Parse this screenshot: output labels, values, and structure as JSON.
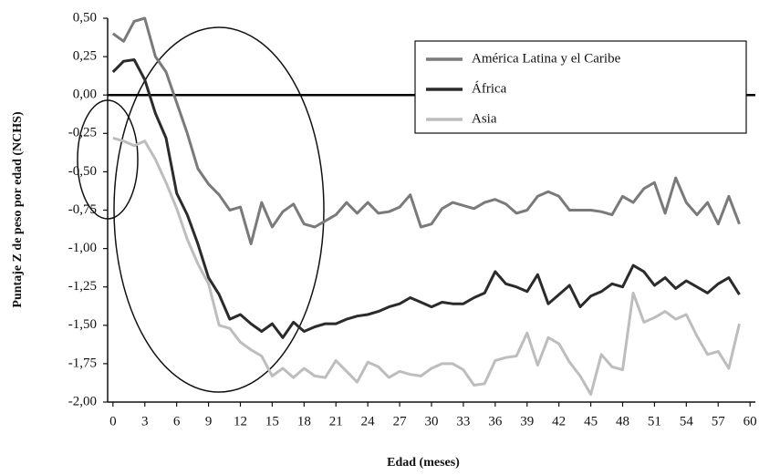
{
  "chart_data": {
    "type": "line",
    "x_label": "Edad (meses)",
    "y_label": "Puntaje Z de peso por edad (NCHS)",
    "x": [
      0,
      1,
      2,
      3,
      4,
      5,
      6,
      7,
      8,
      9,
      10,
      11,
      12,
      13,
      14,
      15,
      16,
      17,
      18,
      19,
      20,
      21,
      22,
      23,
      24,
      25,
      26,
      27,
      28,
      29,
      30,
      31,
      32,
      33,
      34,
      35,
      36,
      37,
      38,
      39,
      40,
      41,
      42,
      43,
      44,
      45,
      46,
      47,
      48,
      49,
      50,
      51,
      52,
      53,
      54,
      55,
      56,
      57,
      58,
      59
    ],
    "xlim": [
      -0.5,
      60.5
    ],
    "xticks": [
      0,
      3,
      6,
      9,
      12,
      15,
      18,
      21,
      24,
      27,
      30,
      33,
      36,
      39,
      42,
      45,
      48,
      51,
      54,
      57,
      60
    ],
    "ylim": [
      -2,
      0.5
    ],
    "yticks": [
      {
        "value": 0.5,
        "label": "0,50"
      },
      {
        "value": 0.25,
        "label": "0,25"
      },
      {
        "value": 0,
        "label": "0,00"
      },
      {
        "value": -0.25,
        "label": "-0,25"
      },
      {
        "value": -0.5,
        "label": "-0,50"
      },
      {
        "value": -0.75,
        "label": "-0,75"
      },
      {
        "value": -1,
        "label": "-1,00"
      },
      {
        "value": -1.25,
        "label": "-1,25"
      },
      {
        "value": -1.5,
        "label": "-1,50"
      },
      {
        "value": -1.75,
        "label": "-1,75"
      },
      {
        "value": -2,
        "label": "-2,00"
      }
    ],
    "legend": "upper right",
    "series": [
      {
        "name": "América Latina y el Caribe",
        "color": "#7a7a7a",
        "values": [
          0.4,
          0.35,
          0.48,
          0.5,
          0.25,
          0.15,
          -0.05,
          -0.25,
          -0.48,
          -0.58,
          -0.65,
          -0.75,
          -0.73,
          -0.97,
          -0.7,
          -0.86,
          -0.76,
          -0.71,
          -0.84,
          -0.86,
          -0.82,
          -0.78,
          -0.7,
          -0.77,
          -0.7,
          -0.77,
          -0.76,
          -0.73,
          -0.65,
          -0.86,
          -0.84,
          -0.74,
          -0.7,
          -0.72,
          -0.74,
          -0.7,
          -0.68,
          -0.71,
          -0.77,
          -0.75,
          -0.66,
          -0.63,
          -0.66,
          -0.75,
          -0.75,
          -0.75,
          -0.76,
          -0.78,
          -0.66,
          -0.7,
          -0.61,
          -0.57,
          -0.77,
          -0.54,
          -0.7,
          -0.78,
          -0.7,
          -0.84,
          -0.66,
          -0.84
        ]
      },
      {
        "name": "África",
        "color": "#2b2b2b",
        "values": [
          0.15,
          0.22,
          0.23,
          0.1,
          -0.12,
          -0.28,
          -0.64,
          -0.78,
          -0.97,
          -1.19,
          -1.3,
          -1.46,
          -1.43,
          -1.49,
          -1.54,
          -1.49,
          -1.58,
          -1.48,
          -1.54,
          -1.51,
          -1.49,
          -1.49,
          -1.46,
          -1.44,
          -1.43,
          -1.41,
          -1.38,
          -1.36,
          -1.32,
          -1.35,
          -1.38,
          -1.35,
          -1.36,
          -1.36,
          -1.32,
          -1.29,
          -1.15,
          -1.23,
          -1.25,
          -1.28,
          -1.17,
          -1.36,
          -1.3,
          -1.24,
          -1.38,
          -1.31,
          -1.28,
          -1.23,
          -1.25,
          -1.11,
          -1.15,
          -1.24,
          -1.19,
          -1.26,
          -1.21,
          -1.25,
          -1.29,
          -1.23,
          -1.19,
          -1.3
        ]
      },
      {
        "name": "Asia",
        "color": "#bdbdbd",
        "values": [
          -0.28,
          -0.3,
          -0.33,
          -0.3,
          -0.42,
          -0.57,
          -0.74,
          -0.94,
          -1.1,
          -1.23,
          -1.5,
          -1.52,
          -1.61,
          -1.66,
          -1.7,
          -1.83,
          -1.78,
          -1.84,
          -1.78,
          -1.83,
          -1.84,
          -1.73,
          -1.8,
          -1.87,
          -1.74,
          -1.77,
          -1.84,
          -1.8,
          -1.82,
          -1.83,
          -1.78,
          -1.75,
          -1.75,
          -1.79,
          -1.89,
          -1.88,
          -1.73,
          -1.71,
          -1.7,
          -1.55,
          -1.76,
          -1.58,
          -1.62,
          -1.74,
          -1.83,
          -1.95,
          -1.69,
          -1.77,
          -1.79,
          -1.29,
          -1.48,
          -1.45,
          -1.41,
          -1.46,
          -1.43,
          -1.57,
          -1.69,
          -1.67,
          -1.78,
          -1.49
        ]
      }
    ]
  }
}
